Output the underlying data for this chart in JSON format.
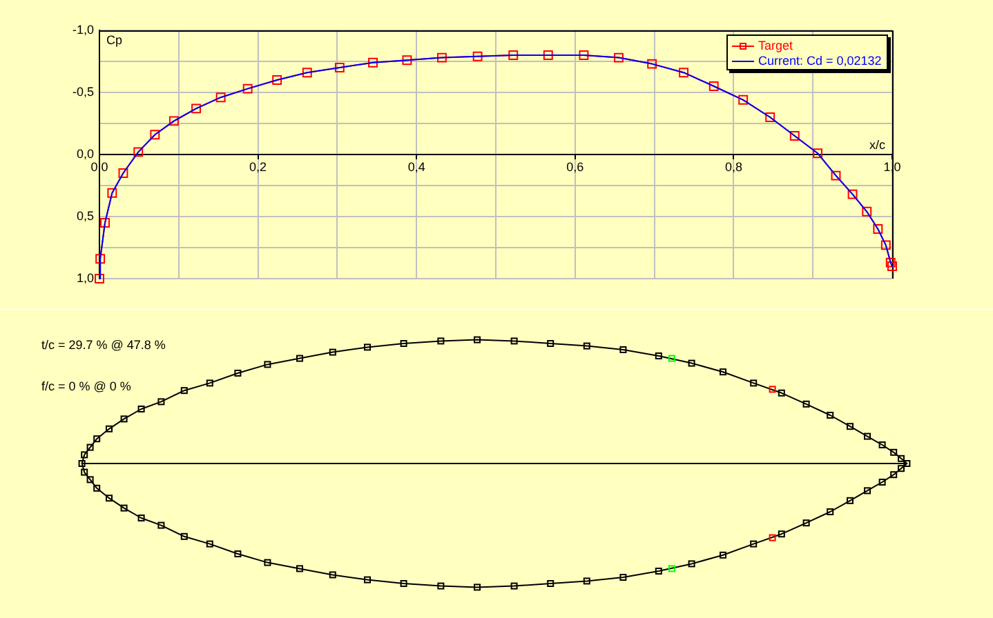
{
  "chart_data": [
    {
      "type": "line",
      "xlabel": "x/c",
      "ylabel": "Cp",
      "x": [
        0,
        0.001,
        0.007,
        0.016,
        0.03,
        0.049,
        0.07,
        0.094,
        0.122,
        0.153,
        0.187,
        0.224,
        0.262,
        0.303,
        0.345,
        0.388,
        0.432,
        0.477,
        0.522,
        0.566,
        0.611,
        0.655,
        0.697,
        0.737,
        0.775,
        0.812,
        0.846,
        0.877,
        0.906,
        0.929,
        0.95,
        0.968,
        0.982,
        0.992,
        0.998,
        1.0
      ],
      "series": [
        {
          "name": "Target",
          "color": "#ff0000",
          "marker": "square",
          "values": [
            1.0,
            0.84,
            0.55,
            0.31,
            0.15,
            -0.02,
            -0.16,
            -0.27,
            -0.37,
            -0.46,
            -0.53,
            -0.6,
            -0.66,
            -0.7,
            -0.74,
            -0.76,
            -0.78,
            -0.79,
            -0.8,
            -0.8,
            -0.8,
            -0.78,
            -0.73,
            -0.66,
            -0.55,
            -0.44,
            -0.3,
            -0.15,
            -0.01,
            0.17,
            0.32,
            0.46,
            0.6,
            0.73,
            0.87,
            0.9
          ]
        },
        {
          "name": "Current: Cd = 0,02132",
          "color": "#0000ff",
          "marker": "none",
          "values": [
            1.0,
            0.84,
            0.55,
            0.31,
            0.15,
            -0.02,
            -0.16,
            -0.27,
            -0.37,
            -0.46,
            -0.53,
            -0.6,
            -0.66,
            -0.7,
            -0.74,
            -0.76,
            -0.78,
            -0.79,
            -0.8,
            -0.8,
            -0.8,
            -0.78,
            -0.73,
            -0.66,
            -0.55,
            -0.44,
            -0.3,
            -0.15,
            -0.01,
            0.17,
            0.32,
            0.46,
            0.6,
            0.73,
            0.87,
            0.9
          ]
        }
      ],
      "xlim": [
        0,
        1
      ],
      "ylim": [
        1,
        -1
      ],
      "xticks": [
        {
          "value": 0,
          "label": "0,0"
        },
        {
          "value": 0.1,
          "label": null
        },
        {
          "value": 0.2,
          "label": "0,2"
        },
        {
          "value": 0.3,
          "label": null
        },
        {
          "value": 0.4,
          "label": "0,4"
        },
        {
          "value": 0.5,
          "label": null
        },
        {
          "value": 0.6,
          "label": "0,6"
        },
        {
          "value": 0.7,
          "label": null
        },
        {
          "value": 0.8,
          "label": "0,8"
        },
        {
          "value": 0.9,
          "label": null
        },
        {
          "value": 1,
          "label": "1,0"
        }
      ],
      "yticks": [
        {
          "value": -1,
          "label": "-1,0"
        },
        {
          "value": -0.75,
          "label": null
        },
        {
          "value": -0.5,
          "label": "-0,5"
        },
        {
          "value": -0.25,
          "label": null
        },
        {
          "value": 0,
          "label": "0,0"
        },
        {
          "value": 0.25,
          "label": null
        },
        {
          "value": 0.5,
          "label": "0,5"
        },
        {
          "value": 0.75,
          "label": null
        },
        {
          "value": 1,
          "label": "1,0"
        }
      ],
      "grid": true,
      "legend": "top right",
      "line_style": "solid"
    },
    {
      "type": "other",
      "annotations": [
        "t/c = 29.7 % @ 47.8 %",
        "f/c = 0 % @ 0 %"
      ]
    }
  ]
}
